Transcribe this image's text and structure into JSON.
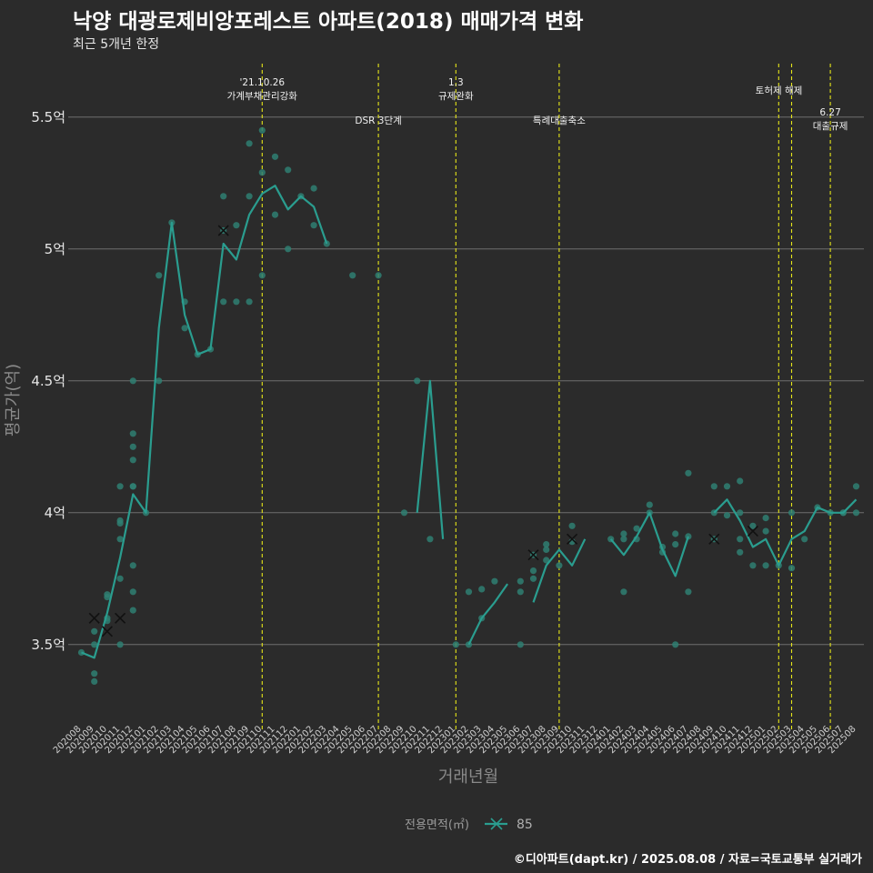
{
  "title": "낙양 대광로제비앙포레스트 아파트(2018) 매매가격 변화",
  "subtitle": "최근 5개년 한정",
  "footer": "©디아파트(dapt.kr) / 2025.08.08 / 자료=국토교통부 실거래가",
  "colors": {
    "background": "#2b2b2b",
    "grid": "#6e6e6e",
    "line": "#2a9d8f",
    "points": "#2f7f72",
    "event_line": "#e6e619",
    "text": "#e6e6e6"
  },
  "chart_data": {
    "type": "line",
    "xlabel": "거래년월",
    "ylabel": "평균가(억)",
    "ylim": [
      3.22,
      5.72
    ],
    "yticks": [
      3.5,
      4.0,
      4.5,
      5.0,
      5.5
    ],
    "ytick_labels": [
      "3.5억",
      "4억",
      "4.5억",
      "5억",
      "5.5억"
    ],
    "grid": true,
    "legend_position": "bottom",
    "legend_title": "전용면적(㎡)",
    "categories": [
      "202008",
      "202009",
      "202010",
      "202011",
      "202012",
      "202101",
      "202102",
      "202103",
      "202104",
      "202105",
      "202106",
      "202107",
      "202108",
      "202109",
      "202110",
      "202111",
      "202112",
      "202201",
      "202202",
      "202203",
      "202204",
      "202205",
      "202206",
      "202207",
      "202208",
      "202209",
      "202210",
      "202211",
      "202212",
      "202301",
      "202302",
      "202303",
      "202304",
      "202305",
      "202306",
      "202307",
      "202308",
      "202309",
      "202310",
      "202311",
      "202312",
      "202401",
      "202402",
      "202403",
      "202404",
      "202405",
      "202406",
      "202407",
      "202408",
      "202409",
      "202410",
      "202411",
      "202412",
      "202501",
      "202502",
      "202503",
      "202504",
      "202505",
      "202506",
      "202507",
      "202508"
    ],
    "series": [
      {
        "name": "85",
        "average_line": [
          3.47,
          3.45,
          3.62,
          3.83,
          4.07,
          4.0,
          4.7,
          5.1,
          4.75,
          4.6,
          4.62,
          5.02,
          4.96,
          5.13,
          5.21,
          5.24,
          5.15,
          5.2,
          5.16,
          5.02,
          null,
          null,
          null,
          null,
          null,
          null,
          4.0,
          4.5,
          3.9,
          null,
          3.5,
          3.6,
          3.66,
          3.73,
          null,
          3.66,
          3.8,
          3.86,
          3.8,
          3.9,
          null,
          3.9,
          3.84,
          3.91,
          4.0,
          3.86,
          3.76,
          3.91,
          null,
          4.0,
          4.05,
          3.97,
          3.87,
          3.9,
          3.8,
          3.9,
          3.93,
          4.02,
          4.0,
          4.0,
          4.05
        ],
        "transactions": [
          {
            "x": "202008",
            "y": 3.47
          },
          {
            "x": "202009",
            "y": 3.39
          },
          {
            "x": "202009",
            "y": 3.36
          },
          {
            "x": "202009",
            "y": 3.5
          },
          {
            "x": "202009",
            "y": 3.55
          },
          {
            "x": "202010",
            "y": 3.59
          },
          {
            "x": "202010",
            "y": 3.6
          },
          {
            "x": "202010",
            "y": 3.68
          },
          {
            "x": "202010",
            "y": 3.69
          },
          {
            "x": "202011",
            "y": 3.5
          },
          {
            "x": "202011",
            "y": 3.75
          },
          {
            "x": "202011",
            "y": 3.9
          },
          {
            "x": "202011",
            "y": 3.96
          },
          {
            "x": "202011",
            "y": 3.97
          },
          {
            "x": "202011",
            "y": 4.1
          },
          {
            "x": "202012",
            "y": 3.63
          },
          {
            "x": "202012",
            "y": 3.7
          },
          {
            "x": "202012",
            "y": 3.8
          },
          {
            "x": "202012",
            "y": 4.1
          },
          {
            "x": "202012",
            "y": 4.1
          },
          {
            "x": "202012",
            "y": 4.2
          },
          {
            "x": "202012",
            "y": 4.25
          },
          {
            "x": "202012",
            "y": 4.3
          },
          {
            "x": "202012",
            "y": 4.5
          },
          {
            "x": "202101",
            "y": 4.0
          },
          {
            "x": "202102",
            "y": 4.5
          },
          {
            "x": "202102",
            "y": 4.9
          },
          {
            "x": "202103",
            "y": 5.1
          },
          {
            "x": "202104",
            "y": 4.7
          },
          {
            "x": "202104",
            "y": 4.8
          },
          {
            "x": "202105",
            "y": 4.6
          },
          {
            "x": "202106",
            "y": 4.62
          },
          {
            "x": "202107",
            "y": 4.8
          },
          {
            "x": "202107",
            "y": 5.07
          },
          {
            "x": "202107",
            "y": 5.2
          },
          {
            "x": "202108",
            "y": 4.8
          },
          {
            "x": "202108",
            "y": 5.09
          },
          {
            "x": "202109",
            "y": 4.8
          },
          {
            "x": "202109",
            "y": 5.2
          },
          {
            "x": "202109",
            "y": 5.4
          },
          {
            "x": "202110",
            "y": 4.9
          },
          {
            "x": "202110",
            "y": 5.29
          },
          {
            "x": "202110",
            "y": 5.45
          },
          {
            "x": "202111",
            "y": 5.13
          },
          {
            "x": "202111",
            "y": 5.35
          },
          {
            "x": "202112",
            "y": 5.0
          },
          {
            "x": "202112",
            "y": 5.3
          },
          {
            "x": "202201",
            "y": 5.2
          },
          {
            "x": "202202",
            "y": 5.09
          },
          {
            "x": "202202",
            "y": 5.23
          },
          {
            "x": "202203",
            "y": 5.02
          },
          {
            "x": "202205",
            "y": 4.9
          },
          {
            "x": "202207",
            "y": 4.9
          },
          {
            "x": "202209",
            "y": 4.0
          },
          {
            "x": "202210",
            "y": 4.5
          },
          {
            "x": "202211",
            "y": 3.9
          },
          {
            "x": "202301",
            "y": 3.5
          },
          {
            "x": "202302",
            "y": 3.5
          },
          {
            "x": "202302",
            "y": 3.7
          },
          {
            "x": "202303",
            "y": 3.6
          },
          {
            "x": "202303",
            "y": 3.71
          },
          {
            "x": "202304",
            "y": 3.74
          },
          {
            "x": "202306",
            "y": 3.5
          },
          {
            "x": "202306",
            "y": 3.7
          },
          {
            "x": "202306",
            "y": 3.74
          },
          {
            "x": "202307",
            "y": 3.75
          },
          {
            "x": "202307",
            "y": 3.78
          },
          {
            "x": "202307",
            "y": 3.84
          },
          {
            "x": "202308",
            "y": 3.82
          },
          {
            "x": "202308",
            "y": 3.86
          },
          {
            "x": "202308",
            "y": 3.88
          },
          {
            "x": "202309",
            "y": 3.8
          },
          {
            "x": "202310",
            "y": 3.89
          },
          {
            "x": "202310",
            "y": 3.95
          },
          {
            "x": "202401",
            "y": 3.9
          },
          {
            "x": "202402",
            "y": 3.7
          },
          {
            "x": "202402",
            "y": 3.9
          },
          {
            "x": "202402",
            "y": 3.92
          },
          {
            "x": "202403",
            "y": 3.9
          },
          {
            "x": "202403",
            "y": 3.94
          },
          {
            "x": "202404",
            "y": 4.0
          },
          {
            "x": "202404",
            "y": 4.03
          },
          {
            "x": "202405",
            "y": 3.85
          },
          {
            "x": "202405",
            "y": 3.87
          },
          {
            "x": "202406",
            "y": 3.5
          },
          {
            "x": "202406",
            "y": 3.88
          },
          {
            "x": "202406",
            "y": 3.92
          },
          {
            "x": "202407",
            "y": 3.7
          },
          {
            "x": "202407",
            "y": 3.91
          },
          {
            "x": "202407",
            "y": 4.15
          },
          {
            "x": "202409",
            "y": 3.9
          },
          {
            "x": "202409",
            "y": 4.0
          },
          {
            "x": "202409",
            "y": 4.1
          },
          {
            "x": "202410",
            "y": 3.99
          },
          {
            "x": "202410",
            "y": 4.1
          },
          {
            "x": "202411",
            "y": 3.85
          },
          {
            "x": "202411",
            "y": 3.9
          },
          {
            "x": "202411",
            "y": 4.0
          },
          {
            "x": "202411",
            "y": 4.12
          },
          {
            "x": "202412",
            "y": 3.8
          },
          {
            "x": "202412",
            "y": 3.95
          },
          {
            "x": "202501",
            "y": 3.8
          },
          {
            "x": "202501",
            "y": 3.93
          },
          {
            "x": "202501",
            "y": 3.98
          },
          {
            "x": "202502",
            "y": 3.8
          },
          {
            "x": "202503",
            "y": 3.79
          },
          {
            "x": "202503",
            "y": 4.0
          },
          {
            "x": "202504",
            "y": 3.9
          },
          {
            "x": "202505",
            "y": 4.02
          },
          {
            "x": "202506",
            "y": 4.0
          },
          {
            "x": "202507",
            "y": 4.0
          },
          {
            "x": "202507",
            "y": 4.0
          },
          {
            "x": "202508",
            "y": 4.0
          },
          {
            "x": "202508",
            "y": 4.1
          }
        ],
        "x_markers": [
          {
            "x": "202009",
            "y": 3.6
          },
          {
            "x": "202010",
            "y": 3.55
          },
          {
            "x": "202011",
            "y": 3.6
          },
          {
            "x": "202107",
            "y": 5.07
          },
          {
            "x": "202307",
            "y": 3.84
          },
          {
            "x": "202310",
            "y": 3.9
          },
          {
            "x": "202409",
            "y": 3.9
          },
          {
            "x": "202412",
            "y": 3.93
          }
        ]
      }
    ],
    "annotations": [
      {
        "x": "202110",
        "lines": [
          "'21.10.26",
          "가계부채관리강화"
        ],
        "row": "top"
      },
      {
        "x": "202207",
        "lines": [
          "DSR 3단계"
        ],
        "row": "mid"
      },
      {
        "x": "202301",
        "lines": [
          "1.3",
          "규제완화"
        ],
        "row": "top"
      },
      {
        "x": "202309",
        "lines": [
          "특례대출축소"
        ],
        "row": "mid"
      },
      {
        "x": "202502",
        "lines": [],
        "row": "top"
      },
      {
        "x": "202503",
        "lines": [
          "토허제 해제"
        ],
        "row": "top"
      },
      {
        "x": "202506",
        "lines": [
          "6.27",
          "대출규제"
        ],
        "row": "low"
      }
    ]
  }
}
